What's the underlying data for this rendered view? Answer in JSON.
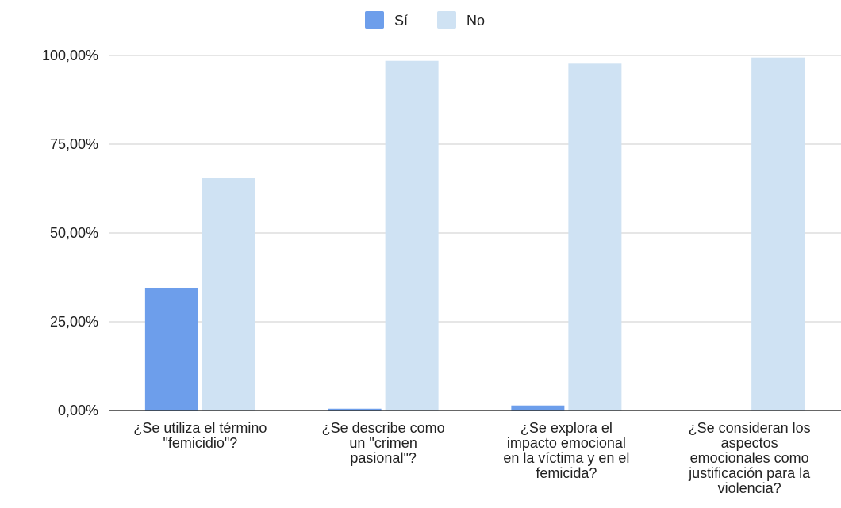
{
  "chart_data": {
    "type": "bar",
    "categories": [
      [
        "¿Se utiliza el término",
        "\"femicidio\"?"
      ],
      [
        "¿Se describe como",
        "un \"crimen",
        "pasional\"?"
      ],
      [
        "¿Se explora el",
        "impacto emocional",
        "en la víctima y en el",
        "femicida?"
      ],
      [
        "¿Se consideran los",
        "aspectos",
        "emocionales como",
        "justificación para la",
        "violencia?"
      ]
    ],
    "series": [
      {
        "name": "Sí",
        "color": "#6d9eeb",
        "values": [
          34.6,
          0.5,
          1.4,
          0.0
        ]
      },
      {
        "name": "No",
        "color": "#cfe2f3",
        "values": [
          65.4,
          98.5,
          97.7,
          99.4
        ]
      }
    ],
    "ylim": [
      0,
      100
    ],
    "yticks": [
      0,
      25,
      50,
      75,
      100
    ],
    "ytick_labels": [
      "0,00%",
      "25,00%",
      "50,00%",
      "75,00%",
      "100,00%"
    ],
    "title": "",
    "xlabel": "",
    "ylabel": "",
    "legend_position": "top-center",
    "grid": true,
    "gridline_color": "#cccccc",
    "baseline_color": "#333333"
  }
}
